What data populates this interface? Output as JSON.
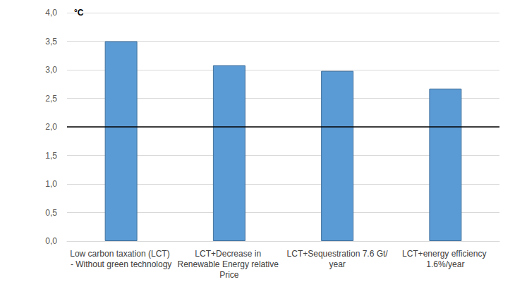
{
  "chart_data": {
    "type": "bar",
    "ylabel": "°C",
    "categories": [
      "Low carbon taxation (LCT) - Without green technology",
      "LCT+Decrease in Renewable Energy relative Price",
      "LCT+Sequestration 7.6 Gt/year",
      "LCT+energy efficiency 1.6%/year"
    ],
    "values": [
      3.5,
      3.08,
      2.98,
      2.67
    ],
    "color": "#5b9bd5",
    "ylim": [
      0,
      4
    ],
    "yticks": [
      {
        "value": 0,
        "label": "0,0"
      },
      {
        "value": 0.5,
        "label": "0,5"
      },
      {
        "value": 1,
        "label": "1,0"
      },
      {
        "value": 1.5,
        "label": "1,5"
      },
      {
        "value": 2,
        "label": "2,0"
      },
      {
        "value": 2.5,
        "label": "2,5"
      },
      {
        "value": 3,
        "label": "3,0"
      },
      {
        "value": 3.5,
        "label": "3,5"
      },
      {
        "value": 4,
        "label": "4,0"
      }
    ],
    "hline": 2,
    "grid": true
  }
}
